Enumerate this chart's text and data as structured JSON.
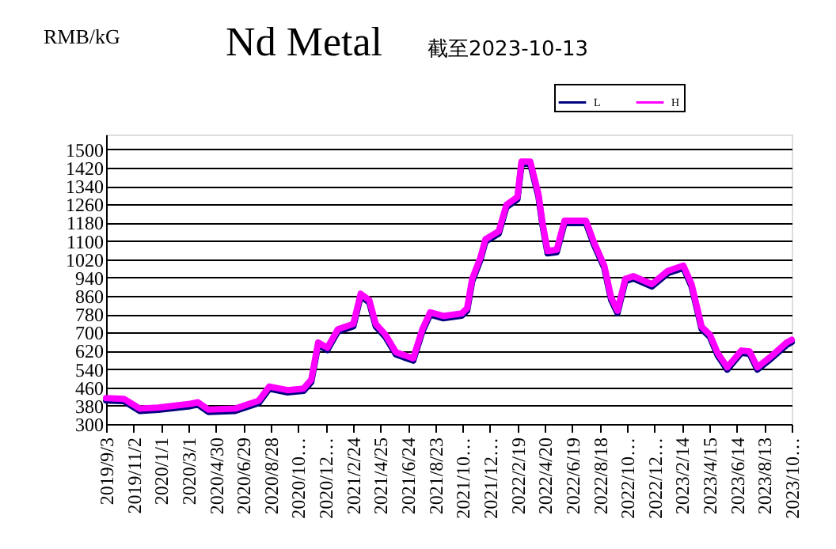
{
  "chart_data": {
    "type": "line",
    "title": "Nd Metal",
    "subtitle": "截至2023-10-13",
    "ylabel": "RMB/kG",
    "x": [
      "2019-09-03",
      "2019-10-12",
      "2019-11-16",
      "2019-12-26",
      "2020-03-05",
      "2020-03-22",
      "2020-04-14",
      "2020-06-11",
      "2020-08-02",
      "2020-08-25",
      "2020-10-04",
      "2020-11-08",
      "2020-11-25",
      "2020-12-10",
      "2020-12-30",
      "2021-01-22",
      "2021-02-25",
      "2021-03-13",
      "2021-04-01",
      "2021-04-15",
      "2021-05-06",
      "2021-05-29",
      "2021-07-06",
      "2021-07-26",
      "2021-08-12",
      "2021-09-10",
      "2021-10-20",
      "2021-11-01",
      "2021-11-12",
      "2021-11-30",
      "2021-12-11",
      "2022-01-09",
      "2022-01-26",
      "2022-02-19",
      "2022-02-28",
      "2022-03-19",
      "2022-04-06",
      "2022-04-15",
      "2022-04-26",
      "2022-05-16",
      "2022-06-02",
      "2022-07-19",
      "2022-08-05",
      "2022-08-28",
      "2022-09-12",
      "2022-09-26",
      "2022-10-13",
      "2022-10-31",
      "2022-12-10",
      "2023-01-14",
      "2023-02-17",
      "2023-03-07",
      "2023-03-29",
      "2023-04-16",
      "2023-05-03",
      "2023-05-24",
      "2023-06-24",
      "2023-07-12",
      "2023-07-29",
      "2023-08-27",
      "2023-10-01",
      "2023-10-12"
    ],
    "series": [
      {
        "name": "L",
        "color": "#000080",
        "values": [
          403,
          400,
          357,
          362,
          378,
          385,
          353,
          357,
          392,
          454,
          438,
          445,
          484,
          646,
          623,
          704,
          727,
          859,
          831,
          727,
          681,
          604,
          577,
          704,
          778,
          762,
          773,
          796,
          924,
          1017,
          1097,
          1132,
          1248,
          1282,
          1437,
          1437,
          1294,
          1167,
          1046,
          1051,
          1178,
          1178,
          1086,
          982,
          843,
          785,
          924,
          936,
          901,
          959,
          982,
          901,
          715,
          681,
          600,
          538,
          611,
          607,
          538,
          584,
          646,
          658
        ]
      },
      {
        "name": "H",
        "color": "#ff00ff",
        "values": [
          413,
          410,
          367,
          372,
          388,
          395,
          363,
          367,
          402,
          464,
          448,
          455,
          494,
          656,
          633,
          714,
          737,
          869,
          841,
          737,
          691,
          614,
          587,
          714,
          788,
          772,
          783,
          806,
          934,
          1027,
          1107,
          1142,
          1258,
          1292,
          1447,
          1447,
          1304,
          1177,
          1056,
          1061,
          1188,
          1188,
          1096,
          992,
          853,
          795,
          934,
          946,
          911,
          969,
          992,
          911,
          725,
          691,
          610,
          548,
          621,
          617,
          548,
          594,
          656,
          668
        ]
      }
    ],
    "xlim": [
      "2019-09-03",
      "2023-10-12"
    ],
    "xticks": [
      {
        "value": "2019-09-03",
        "label": "2019/9/3"
      },
      {
        "value": "2019-11-02",
        "label": "2019/11/2"
      },
      {
        "value": "2020-01-01",
        "label": "2020/1/1"
      },
      {
        "value": "2020-03-01",
        "label": "2020/3/1"
      },
      {
        "value": "2020-04-30",
        "label": "2020/4/30"
      },
      {
        "value": "2020-06-29",
        "label": "2020/6/29"
      },
      {
        "value": "2020-08-28",
        "label": "2020/8/28"
      },
      {
        "value": "2020-10-27",
        "label": "2020/10…"
      },
      {
        "value": "2020-12-26",
        "label": "2020/12…"
      },
      {
        "value": "2021-02-24",
        "label": "2021/2/24"
      },
      {
        "value": "2021-04-25",
        "label": "2021/4/25"
      },
      {
        "value": "2021-06-24",
        "label": "2021/6/24"
      },
      {
        "value": "2021-08-23",
        "label": "2021/8/23"
      },
      {
        "value": "2021-10-22",
        "label": "2021/10…"
      },
      {
        "value": "2021-12-21",
        "label": "2021/12…"
      },
      {
        "value": "2022-02-19",
        "label": "2022/2/19"
      },
      {
        "value": "2022-04-20",
        "label": "2022/4/20"
      },
      {
        "value": "2022-06-19",
        "label": "2022/6/19"
      },
      {
        "value": "2022-08-18",
        "label": "2022/8/18"
      },
      {
        "value": "2022-10-17",
        "label": "2022/10…"
      },
      {
        "value": "2022-12-16",
        "label": "2022/12…"
      },
      {
        "value": "2023-02-14",
        "label": "2023/2/14"
      },
      {
        "value": "2023-04-15",
        "label": "2023/4/15"
      },
      {
        "value": "2023-06-14",
        "label": "2023/6/14"
      },
      {
        "value": "2023-08-13",
        "label": "2023/8/13"
      },
      {
        "value": "2023-10-12",
        "label": "2023/10…"
      }
    ],
    "ylim": [
      300,
      1565
    ],
    "yticks": [
      300,
      380,
      460,
      540,
      620,
      700,
      780,
      860,
      940,
      1020,
      1100,
      1180,
      1260,
      1340,
      1420,
      1500
    ],
    "grid": "y",
    "legend": "top right",
    "line_style": "solid",
    "marker": "none"
  }
}
